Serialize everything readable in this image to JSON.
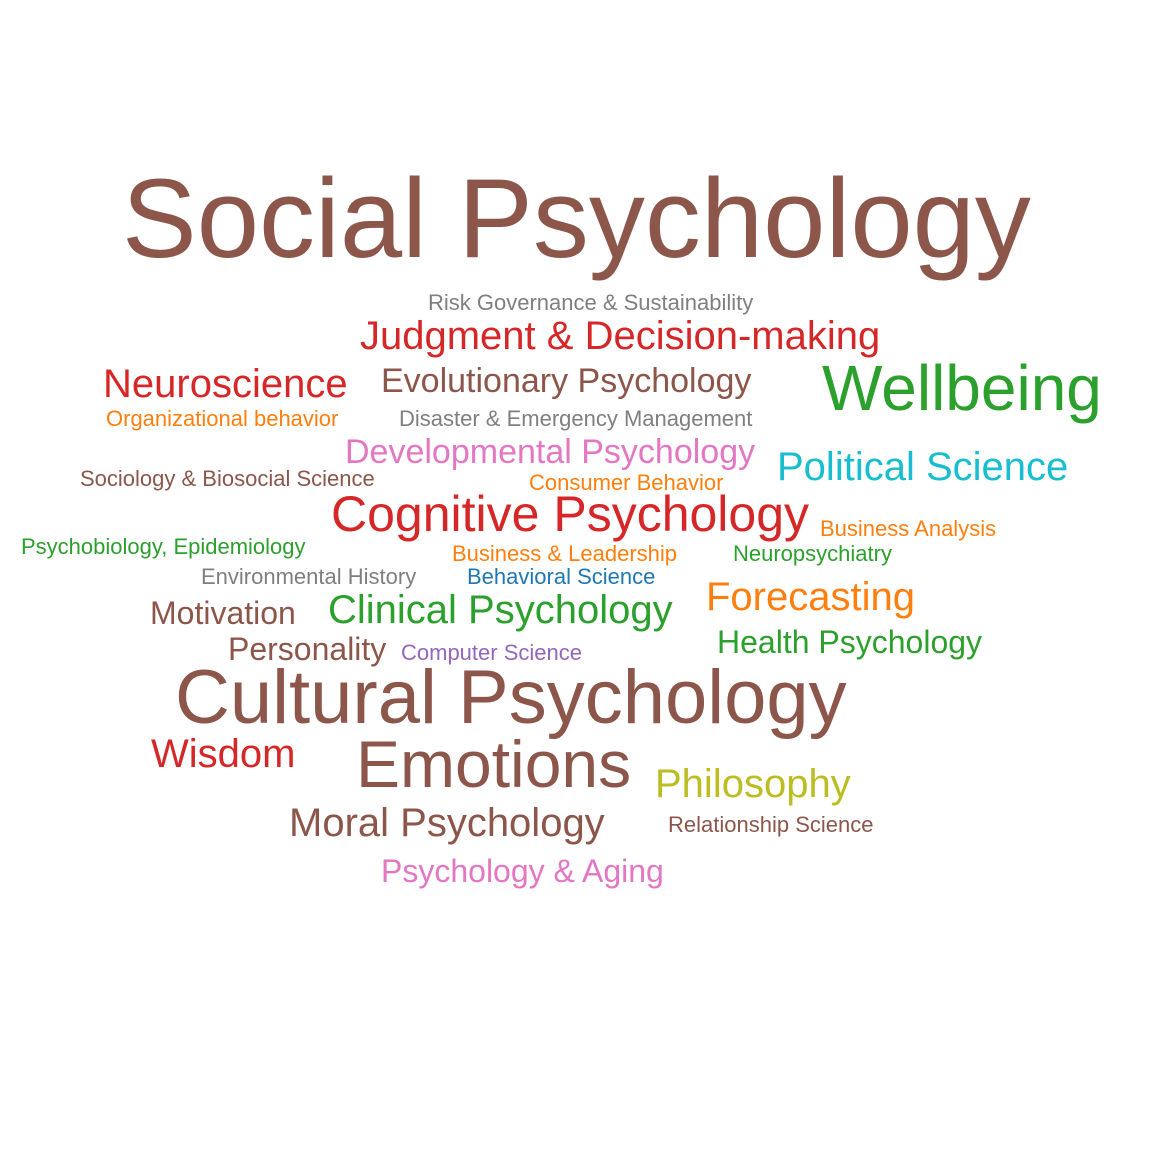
{
  "palette": {
    "brown": "#8c564b",
    "gray": "#7f7f7f",
    "red": "#d62728",
    "green": "#2ca02c",
    "orange": "#ff7f0e",
    "pink": "#e377c2",
    "cyan": "#17becf",
    "blue": "#1f77b4",
    "purple": "#9467bd",
    "olive": "#bcbd22"
  },
  "words": [
    {
      "text": "Social Psychology",
      "color": "#8c564b"
    },
    {
      "text": "Risk Governance & Sustainability",
      "color": "#7f7f7f"
    },
    {
      "text": "Judgment & Decision-making",
      "color": "#d62728"
    },
    {
      "text": "Neuroscience",
      "color": "#d62728"
    },
    {
      "text": "Evolutionary Psychology",
      "color": "#8c564b"
    },
    {
      "text": "Wellbeing",
      "color": "#2ca02c"
    },
    {
      "text": "Organizational behavior",
      "color": "#ff7f0e"
    },
    {
      "text": "Disaster & Emergency Management",
      "color": "#7f7f7f"
    },
    {
      "text": "Developmental Psychology",
      "color": "#e377c2"
    },
    {
      "text": "Political Science",
      "color": "#17becf"
    },
    {
      "text": "Sociology & Biosocial Science",
      "color": "#8c564b"
    },
    {
      "text": "Consumer Behavior",
      "color": "#ff7f0e"
    },
    {
      "text": "Cognitive Psychology",
      "color": "#d62728"
    },
    {
      "text": "Business Analysis",
      "color": "#ff7f0e"
    },
    {
      "text": "Psychobiology, Epidemiology",
      "color": "#2ca02c"
    },
    {
      "text": "Business & Leadership",
      "color": "#ff7f0e"
    },
    {
      "text": "Neuropsychiatry",
      "color": "#2ca02c"
    },
    {
      "text": "Environmental History",
      "color": "#7f7f7f"
    },
    {
      "text": "Behavioral Science",
      "color": "#1f77b4"
    },
    {
      "text": "Forecasting",
      "color": "#ff7f0e"
    },
    {
      "text": "Motivation",
      "color": "#8c564b"
    },
    {
      "text": "Clinical Psychology",
      "color": "#2ca02c"
    },
    {
      "text": "Health Psychology",
      "color": "#2ca02c"
    },
    {
      "text": "Personality",
      "color": "#8c564b"
    },
    {
      "text": "Computer Science",
      "color": "#9467bd"
    },
    {
      "text": "Cultural Psychology",
      "color": "#8c564b"
    },
    {
      "text": "Wisdom",
      "color": "#d62728"
    },
    {
      "text": "Emotions",
      "color": "#8c564b"
    },
    {
      "text": "Philosophy",
      "color": "#bcbd22"
    },
    {
      "text": "Moral Psychology",
      "color": "#8c564b"
    },
    {
      "text": "Relationship Science",
      "color": "#8c564b"
    },
    {
      "text": "Psychology & Aging",
      "color": "#e377c2"
    }
  ]
}
